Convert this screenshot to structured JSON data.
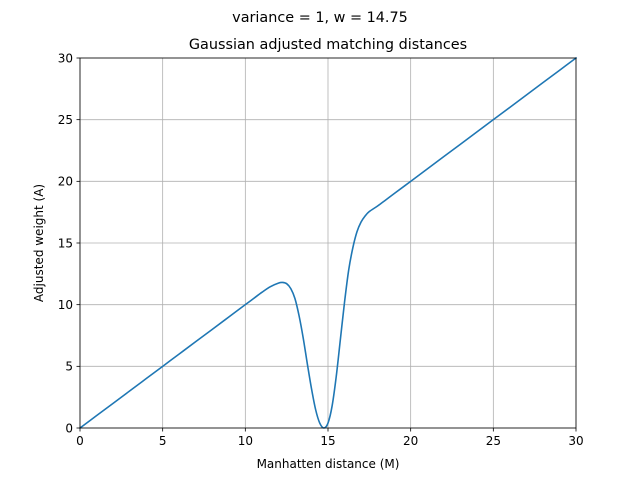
{
  "figure": {
    "suptitle": "variance = 1, w = 14.75"
  },
  "chart_data": {
    "type": "line",
    "title": "Gaussian adjusted matching distances",
    "xlabel": "Manhatten distance (M)",
    "ylabel": "Adjusted weight (A)",
    "xlim": [
      0,
      30
    ],
    "ylim": [
      0,
      30
    ],
    "xticks": [
      "0",
      "5",
      "10",
      "15",
      "20",
      "25",
      "30"
    ],
    "yticks": [
      "0",
      "5",
      "10",
      "15",
      "20",
      "25",
      "30"
    ],
    "grid": true,
    "series": [
      {
        "color": "#1f77b4",
        "points": [
          [
            0,
            0
          ],
          [
            1,
            1
          ],
          [
            2,
            2
          ],
          [
            3,
            3
          ],
          [
            4,
            4
          ],
          [
            5,
            5
          ],
          [
            6,
            6
          ],
          [
            7,
            7
          ],
          [
            8,
            8
          ],
          [
            9,
            9
          ],
          [
            10,
            10
          ],
          [
            10.5,
            10.5
          ],
          [
            11,
            11
          ],
          [
            11.5,
            11.45
          ],
          [
            12,
            11.75
          ],
          [
            12.25,
            11.8
          ],
          [
            12.5,
            11.7
          ],
          [
            12.75,
            11.3
          ],
          [
            13,
            10.5
          ],
          [
            13.25,
            9.1
          ],
          [
            13.5,
            7.3
          ],
          [
            13.75,
            5.2
          ],
          [
            14,
            3.2
          ],
          [
            14.25,
            1.5
          ],
          [
            14.5,
            0.4
          ],
          [
            14.75,
            0.0
          ],
          [
            15,
            0.4
          ],
          [
            15.25,
            1.8
          ],
          [
            15.5,
            4.2
          ],
          [
            15.75,
            7.2
          ],
          [
            16,
            10.2
          ],
          [
            16.25,
            12.8
          ],
          [
            16.5,
            14.6
          ],
          [
            16.75,
            15.9
          ],
          [
            17,
            16.7
          ],
          [
            17.25,
            17.2
          ],
          [
            17.5,
            17.55
          ],
          [
            18,
            18.0
          ],
          [
            18.5,
            18.5
          ],
          [
            19,
            19
          ],
          [
            20,
            20
          ],
          [
            21,
            21
          ],
          [
            22,
            22
          ],
          [
            23,
            23
          ],
          [
            24,
            24
          ],
          [
            25,
            25
          ],
          [
            26,
            26
          ],
          [
            27,
            27
          ],
          [
            28,
            28
          ],
          [
            29,
            29
          ],
          [
            30,
            30
          ]
        ]
      }
    ]
  }
}
